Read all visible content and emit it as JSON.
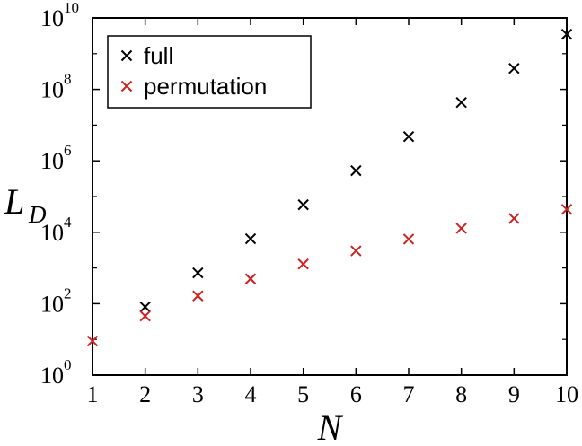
{
  "chart_data": {
    "type": "scatter",
    "xlabel": "N",
    "ylabel": "L",
    "ylabel_subscript": "D",
    "xlim": [
      1,
      10
    ],
    "ylim": [
      1,
      10000000000
    ],
    "yscale": "log",
    "x_ticks": [
      "1",
      "2",
      "3",
      "4",
      "5",
      "6",
      "7",
      "8",
      "9",
      "10"
    ],
    "y_ticks": [
      {
        "base": "10",
        "exp": "0"
      },
      {
        "base": "10",
        "exp": "2"
      },
      {
        "base": "10",
        "exp": "4"
      },
      {
        "base": "10",
        "exp": "6"
      },
      {
        "base": "10",
        "exp": "8"
      },
      {
        "base": "10",
        "exp": "10"
      }
    ],
    "grid": false,
    "legend_position": "top-left",
    "series": [
      {
        "name": "full",
        "color": "#000000",
        "marker": "x",
        "x": [
          2,
          3,
          4,
          5,
          6,
          7,
          8,
          9,
          10
        ],
        "y": [
          81,
          729,
          6561,
          59049,
          531441,
          4782969,
          43046721,
          387420489,
          3486784401
        ]
      },
      {
        "name": "permutation",
        "color": "#cc2222",
        "marker": "x",
        "x": [
          1,
          2,
          3,
          4,
          5,
          6,
          7,
          8,
          9,
          10
        ],
        "y": [
          9,
          45,
          165,
          495,
          1287,
          3003,
          6435,
          12870,
          24310,
          43758
        ]
      }
    ]
  }
}
